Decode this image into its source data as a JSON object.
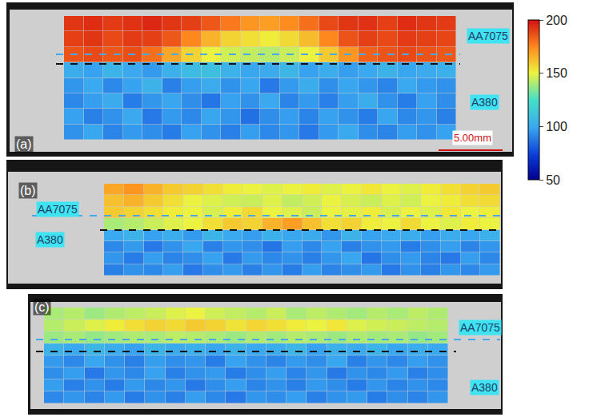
{
  "chart_data": [
    {
      "type": "heatmap",
      "title": "(a)",
      "labels": [
        "AA7075",
        "A380"
      ],
      "scale_bar": "5.00mm",
      "tick_labels": false,
      "colorbar": {
        "range": [
          50,
          200
        ],
        "ticks": [
          50,
          100,
          150,
          200
        ]
      },
      "cells": [
        [
          192,
          194,
          191,
          193,
          195,
          192,
          190,
          185,
          178,
          172,
          170,
          174,
          180,
          188,
          192,
          193,
          190,
          194,
          192,
          191
        ],
        [
          190,
          192,
          188,
          191,
          190,
          185,
          175,
          165,
          158,
          155,
          152,
          156,
          163,
          175,
          186,
          190,
          188,
          191,
          190,
          189
        ],
        [
          186,
          188,
          185,
          187,
          180,
          168,
          158,
          150,
          146,
          144,
          142,
          145,
          150,
          160,
          172,
          183,
          186,
          188,
          186,
          185
        ],
        [
          102,
          98,
          105,
          100,
          96,
          103,
          108,
          110,
          104,
          99,
          101,
          106,
          98,
          102,
          97,
          100,
          104,
          99,
          101,
          103
        ],
        [
          95,
          100,
          92,
          98,
          104,
          90,
          97,
          101,
          94,
          99,
          88,
          96,
          102,
          93,
          99,
          95,
          91,
          100,
          96,
          94
        ],
        [
          92,
          97,
          101,
          89,
          95,
          99,
          93,
          87,
          98,
          94,
          100,
          91,
          96,
          90,
          97,
          102,
          94,
          89,
          98,
          93
        ],
        [
          98,
          90,
          94,
          100,
          88,
          96,
          92,
          99,
          95,
          86,
          93,
          97,
          91,
          98,
          94,
          89,
          99,
          92,
          95,
          90
        ],
        [
          94,
          99,
          91,
          96,
          93,
          89,
          98,
          94,
          90,
          97,
          92,
          95,
          88,
          96,
          100,
          93,
          91,
          97,
          94,
          98
        ]
      ]
    },
    {
      "type": "heatmap",
      "title": "(b)",
      "labels": [
        "AA7075",
        "A380"
      ],
      "tick_labels": false,
      "cells": [
        [
          168,
          172,
          165,
          160,
          158,
          155,
          152,
          150,
          148,
          150,
          152,
          148,
          150,
          153,
          150,
          148,
          152,
          155,
          158,
          160
        ],
        [
          162,
          165,
          160,
          155,
          150,
          148,
          146,
          145,
          148,
          144,
          146,
          150,
          147,
          145,
          148,
          146,
          150,
          152,
          155,
          156
        ],
        [
          160,
          158,
          155,
          152,
          150,
          147,
          152,
          156,
          150,
          148,
          145,
          150,
          149,
          152,
          147,
          150,
          148,
          153,
          150,
          152
        ],
        [
          140,
          142,
          145,
          148,
          150,
          155,
          160,
          158,
          165,
          170,
          162,
          155,
          158,
          152,
          150,
          156,
          150,
          148,
          152,
          150
        ],
        [
          100,
          104,
          98,
          102,
          96,
          105,
          100,
          97,
          103,
          99,
          101,
          95,
          104,
          98,
          100,
          102,
          97,
          101,
          99,
          103
        ],
        [
          92,
          96,
          88,
          94,
          99,
          90,
          95,
          93,
          87,
          97,
          92,
          98,
          90,
          94,
          96,
          89,
          93,
          97,
          91,
          95
        ],
        [
          95,
          89,
          97,
          91,
          93,
          98,
          88,
          96,
          92,
          94,
          90,
          95,
          99,
          87,
          93,
          96,
          91,
          88,
          97,
          92
        ],
        [
          90,
          94,
          92,
          97,
          88,
          93,
          96,
          90,
          95,
          89,
          97,
          91,
          93,
          96,
          88,
          94,
          90,
          95,
          92,
          96
        ]
      ]
    },
    {
      "type": "heatmap",
      "title": "(c)",
      "labels": [
        "AA7075",
        "A380"
      ],
      "tick_labels": false,
      "cells": [
        [
          140,
          142,
          138,
          141,
          143,
          145,
          148,
          150,
          146,
          144,
          142,
          145,
          140,
          143,
          141,
          139,
          142,
          140,
          143,
          141
        ],
        [
          142,
          145,
          148,
          152,
          155,
          158,
          156,
          160,
          158,
          154,
          157,
          155,
          152,
          150,
          153,
          148,
          146,
          145,
          143,
          142
        ],
        [
          138,
          140,
          137,
          139,
          141,
          140,
          143,
          142,
          140,
          138,
          141,
          139,
          142,
          140,
          138,
          141,
          139,
          140,
          137,
          139
        ],
        [
          104,
          100,
          106,
          102,
          98,
          105,
          101,
          103,
          99,
          104,
          100,
          102,
          106,
          98,
          103,
          101,
          105,
          99,
          102,
          100
        ],
        [
          96,
          92,
          99,
          94,
          90,
          97,
          93,
          95,
          89,
          98,
          94,
          91,
          96,
          93,
          99,
          90,
          95,
          92,
          97,
          94
        ],
        [
          93,
          97,
          88,
          95,
          92,
          98,
          90,
          94,
          96,
          89,
          93,
          97,
          91,
          95,
          88,
          94,
          92,
          96,
          90,
          93
        ],
        [
          97,
          90,
          94,
          89,
          96,
          92,
          95,
          88,
          93,
          97,
          91,
          94,
          90,
          96,
          93,
          89,
          95,
          91,
          94,
          92
        ],
        [
          92,
          95,
          91,
          96,
          89,
          94,
          90,
          97,
          92,
          88,
          95,
          93,
          97,
          90,
          94,
          96,
          89,
          93,
          91,
          95
        ]
      ]
    }
  ]
}
